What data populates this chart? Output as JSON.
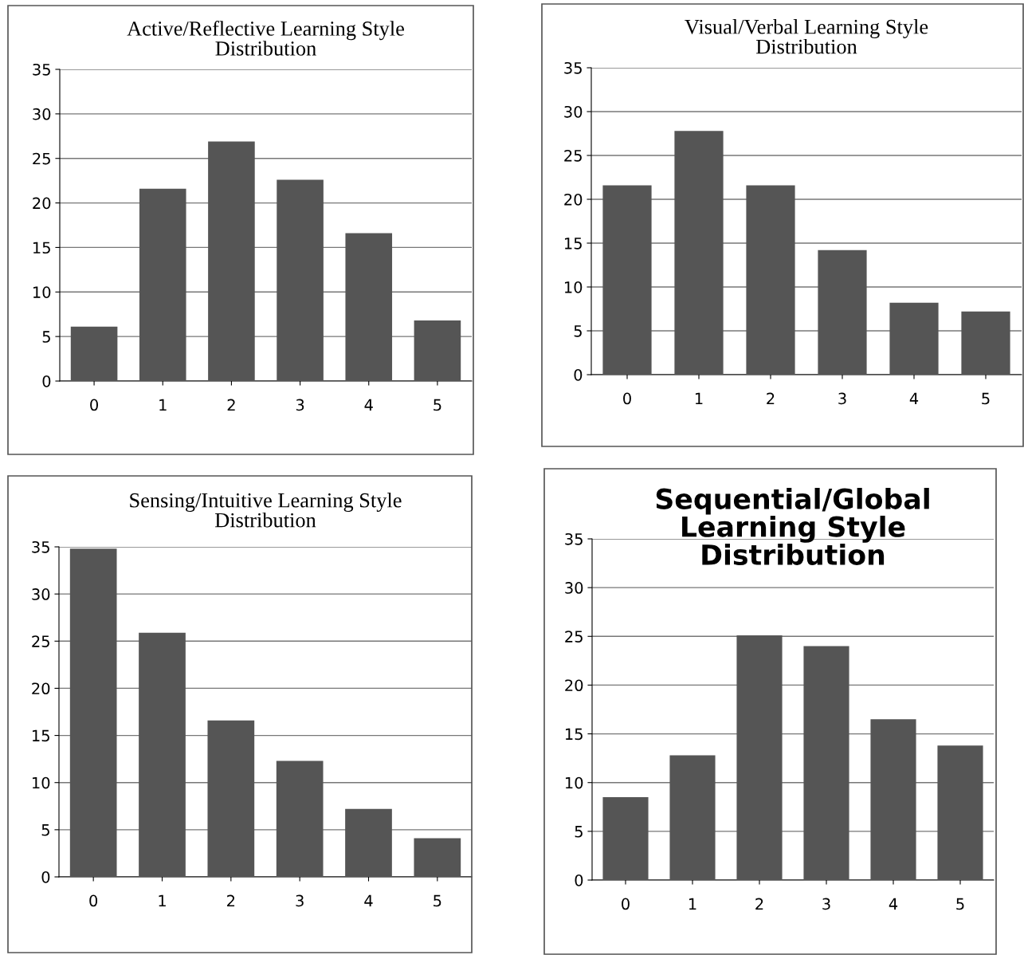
{
  "chart_data": [
    {
      "type": "bar",
      "title": "Active/Reflective Learning Style\nDistribution",
      "categories": [
        "0",
        "1",
        "2",
        "3",
        "4",
        "5"
      ],
      "values": [
        6.1,
        21.6,
        26.9,
        22.6,
        16.6,
        6.8
      ],
      "color": "#555555",
      "ylim": [
        0,
        35
      ],
      "yticks": [
        0,
        5,
        10,
        15,
        20,
        25,
        30,
        35
      ],
      "grid": "y"
    },
    {
      "type": "bar",
      "title": "Visual/Verbal Learning Style\nDistribution",
      "categories": [
        "0",
        "1",
        "2",
        "3",
        "4",
        "5"
      ],
      "values": [
        21.6,
        27.8,
        21.6,
        14.2,
        8.2,
        7.2
      ],
      "color": "#555555",
      "ylim": [
        0,
        35
      ],
      "yticks": [
        0,
        5,
        10,
        15,
        20,
        25,
        30,
        35
      ],
      "grid": "y"
    },
    {
      "type": "bar",
      "title": "Sensing/Intuitive Learning Style\nDistribution",
      "categories": [
        "0",
        "1",
        "2",
        "3",
        "4",
        "5"
      ],
      "values": [
        34.8,
        25.9,
        16.6,
        12.3,
        7.2,
        4.1
      ],
      "color": "#555555",
      "ylim": [
        0,
        35
      ],
      "yticks": [
        0,
        5,
        10,
        15,
        20,
        25,
        30,
        35
      ],
      "grid": "y"
    },
    {
      "type": "bar",
      "title": "Sequential/Global\nLearning Style\nDistribution",
      "categories": [
        "0",
        "1",
        "2",
        "3",
        "4",
        "5"
      ],
      "values": [
        8.5,
        12.8,
        25.1,
        24.0,
        16.5,
        13.8
      ],
      "color": "#555555",
      "ylim": [
        0,
        35
      ],
      "yticks": [
        0,
        5,
        10,
        15,
        20,
        25,
        30,
        35
      ],
      "grid": "y"
    }
  ]
}
